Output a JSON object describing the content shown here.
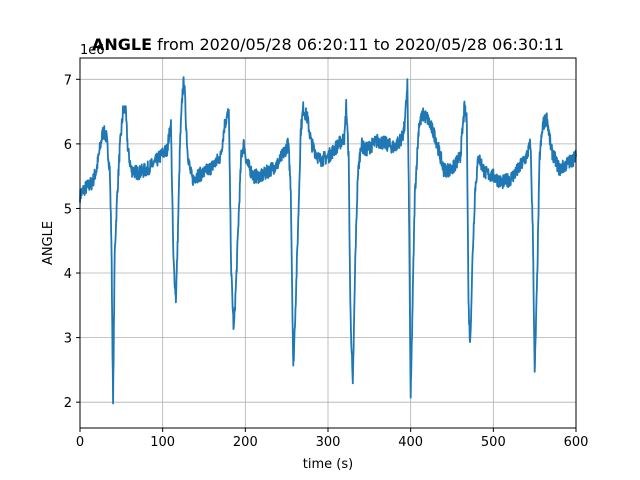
{
  "chart_data": {
    "type": "line",
    "title_bold": "ANGLE",
    "title_rest": " from 2020/05/28 06:20:11 to 2020/05/28 06:30:11",
    "xlabel": "time (s)",
    "ylabel": "ANGLE",
    "offset_label": "1e6",
    "xlim": [
      0,
      600
    ],
    "ylim": [
      1.6,
      7.33
    ],
    "x_ticks": [
      0,
      100,
      200,
      300,
      400,
      500,
      600
    ],
    "x_tick_labels": [
      "0",
      "100",
      "200",
      "300",
      "400",
      "500",
      "600"
    ],
    "y_ticks": [
      2,
      3,
      4,
      5,
      6,
      7
    ],
    "y_tick_labels": [
      "2",
      "3",
      "4",
      "5",
      "6",
      "7"
    ],
    "grid": true,
    "line_color": "#1f77b4",
    "series": [
      {
        "x": [
          0,
          5,
          10,
          15,
          20,
          25,
          28,
          32,
          36,
          38,
          40,
          42,
          45,
          48,
          52,
          55,
          58,
          62,
          70,
          80,
          90,
          100,
          105,
          110,
          113,
          116,
          118,
          121,
          124,
          126,
          128,
          130,
          133,
          136,
          140,
          150,
          160,
          170,
          175,
          180,
          183,
          186,
          189,
          192,
          195,
          198,
          202,
          210,
          220,
          230,
          240,
          248,
          252,
          255,
          258,
          261,
          264,
          267,
          270,
          275,
          280,
          290,
          300,
          310,
          320,
          322,
          325,
          327,
          330,
          333,
          336,
          340,
          345,
          350,
          360,
          370,
          380,
          390,
          393,
          396,
          398,
          400,
          402,
          405,
          410,
          415,
          420,
          430,
          440,
          450,
          460,
          465,
          468,
          470,
          472,
          475,
          478,
          482,
          490,
          500,
          510,
          520,
          530,
          540,
          545,
          548,
          550,
          553,
          556,
          560,
          565,
          570,
          580,
          590,
          600
        ],
        "y": [
          5.2,
          5.3,
          5.35,
          5.4,
          5.6,
          6.0,
          6.2,
          6.1,
          5.6,
          4.5,
          1.95,
          4.3,
          5.2,
          5.9,
          6.5,
          6.55,
          5.9,
          5.6,
          5.55,
          5.6,
          5.7,
          5.85,
          5.9,
          6.3,
          4.2,
          3.6,
          4.4,
          6.0,
          6.8,
          7.0,
          6.4,
          5.9,
          5.6,
          5.45,
          5.5,
          5.55,
          5.65,
          5.8,
          6.3,
          6.5,
          4.0,
          3.1,
          3.9,
          4.9,
          5.8,
          6.0,
          5.7,
          5.5,
          5.5,
          5.6,
          5.7,
          5.9,
          6.0,
          5.3,
          2.5,
          3.6,
          4.8,
          6.2,
          6.55,
          6.4,
          6.0,
          5.75,
          5.8,
          5.95,
          6.1,
          6.6,
          5.8,
          3.5,
          2.2,
          4.2,
          5.5,
          6.0,
          5.9,
          5.95,
          6.05,
          6.0,
          5.95,
          6.1,
          6.3,
          6.95,
          5.0,
          2.0,
          3.3,
          5.2,
          6.3,
          6.45,
          6.4,
          6.1,
          5.6,
          5.6,
          5.8,
          6.55,
          6.35,
          3.5,
          2.9,
          4.3,
          5.3,
          5.8,
          5.55,
          5.5,
          5.4,
          5.45,
          5.6,
          5.8,
          6.0,
          4.5,
          2.4,
          3.9,
          5.8,
          6.3,
          6.4,
          5.9,
          5.6,
          5.7,
          5.8
        ]
      }
    ]
  }
}
